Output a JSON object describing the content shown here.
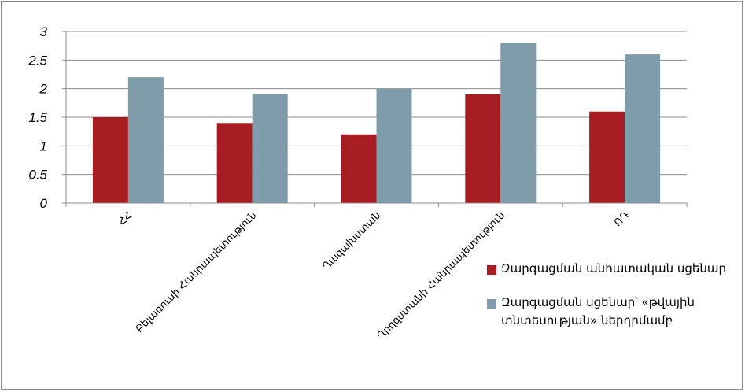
{
  "chart_data": {
    "type": "bar",
    "categories": [
      "ՀՀ",
      "Բելառուսի Հանրապետություն",
      "Ղազախստան",
      "Ղրղզստանի Հանրապետություն",
      "ՌԴ"
    ],
    "series": [
      {
        "name": "Զարգացման անհատական սցենար",
        "values": [
          1.5,
          1.4,
          1.2,
          1.9,
          1.6
        ],
        "color": "#a61c22"
      },
      {
        "name": "Զարգացման սցենար՝ «թվային տնտեսության» ներդրմամբ",
        "values": [
          2.2,
          1.9,
          2.0,
          2.8,
          2.6
        ],
        "color": "#7f9cab"
      }
    ],
    "yticks": [
      "0",
      "0.5",
      "1",
      "1.5",
      "2",
      "2.5",
      "3"
    ],
    "ylim": [
      0,
      3
    ],
    "grid": true,
    "legend_position": "right"
  }
}
